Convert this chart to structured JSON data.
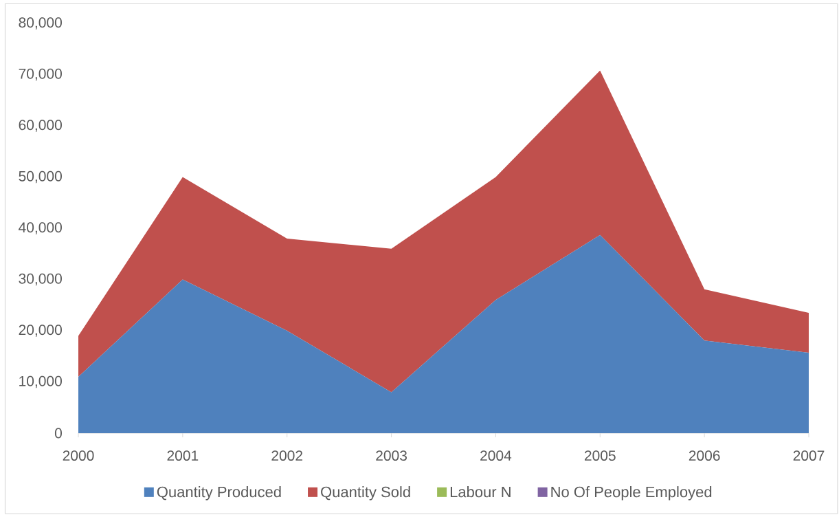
{
  "chart_data": {
    "type": "area",
    "stacked": true,
    "categories": [
      "2000",
      "2001",
      "2002",
      "2003",
      "2004",
      "2005",
      "2006",
      "2007"
    ],
    "series": [
      {
        "name": "Quantity Produced",
        "color": "#4f81bd",
        "values": [
          11000,
          30000,
          20000,
          8000,
          26000,
          38700,
          18100,
          15700
        ]
      },
      {
        "name": "Quantity Sold",
        "color": "#c0504d",
        "values": [
          8000,
          20000,
          18000,
          28000,
          24000,
          32100,
          10000,
          7800
        ]
      },
      {
        "name": "Labour N",
        "color": "#9bbb59",
        "values": [
          null,
          null,
          null,
          null,
          null,
          null,
          null,
          null
        ]
      },
      {
        "name": "No Of People Employed",
        "color": "#8064a2",
        "values": [
          null,
          null,
          null,
          null,
          null,
          null,
          null,
          null
        ]
      }
    ],
    "ylim": [
      0,
      80000
    ],
    "yticks": [
      0,
      {
        "value": 10000,
        "label": "10,000"
      },
      {
        "value": 20000,
        "label": "20,000"
      },
      {
        "value": 30000,
        "label": "30,000"
      },
      {
        "value": 40000,
        "label": "40,000"
      },
      {
        "value": 50000,
        "label": "50,000"
      },
      {
        "value": 60000,
        "label": "60,000"
      },
      {
        "value": 70000,
        "label": "70,000"
      },
      {
        "value": 80000,
        "label": "80,000"
      }
    ],
    "legend": "bottom"
  }
}
